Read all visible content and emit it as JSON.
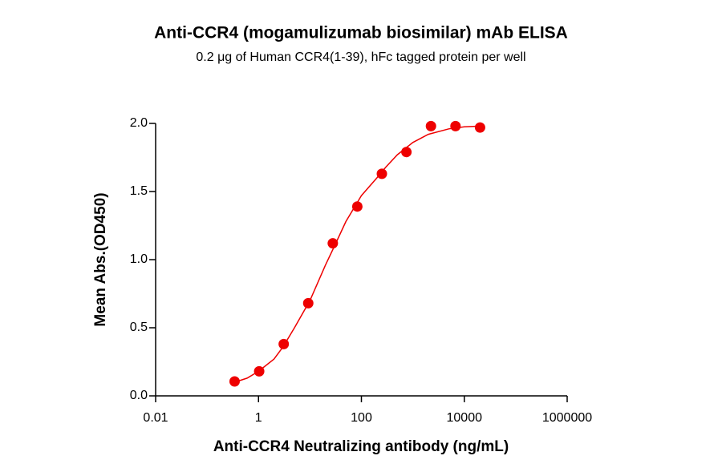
{
  "chart_data": {
    "type": "scatter",
    "title": "Anti-CCR4 (mogamulizumab biosimilar) mAb ELISA",
    "subtitle": "0.2 μg of Human CCR4(1-39), hFc tagged protein per well",
    "x_label": "Anti-CCR4 Neutralizing antibody (ng/mL)",
    "y_label": "Mean Abs.(OD450)",
    "xscale": "log",
    "x": [
      0.343,
      1.03,
      3.09,
      9.26,
      27.8,
      83.3,
      250,
      750,
      2250,
      6750,
      20250
    ],
    "values": [
      0.106,
      0.18,
      0.38,
      0.68,
      1.12,
      1.39,
      1.63,
      1.79,
      1.98,
      1.98,
      1.97
    ],
    "color": "#ee0000",
    "fit": {
      "x": [
        0.343,
        0.6,
        1,
        2,
        3,
        5,
        10,
        20,
        30,
        50,
        100,
        200,
        300,
        500,
        1000,
        2000,
        5000,
        10000,
        20250
      ],
      "values": [
        0.1,
        0.13,
        0.18,
        0.27,
        0.36,
        0.5,
        0.7,
        0.96,
        1.1,
        1.28,
        1.47,
        1.6,
        1.68,
        1.77,
        1.86,
        1.92,
        1.96,
        1.975,
        1.98
      ],
      "color": "#ee0000"
    },
    "xlim": [
      0.01,
      1000000
    ],
    "xticks": [
      0.01,
      1,
      100,
      10000,
      1000000
    ],
    "ylim": [
      0,
      2
    ],
    "yticks": [
      {
        "value": 0,
        "label": "0.0"
      },
      {
        "value": 0.5,
        "label": "0.5"
      },
      {
        "value": 1,
        "label": "1.0"
      },
      {
        "value": 1.5,
        "label": "1.5"
      },
      {
        "value": 2,
        "label": "2.0"
      }
    ],
    "grid": false
  }
}
